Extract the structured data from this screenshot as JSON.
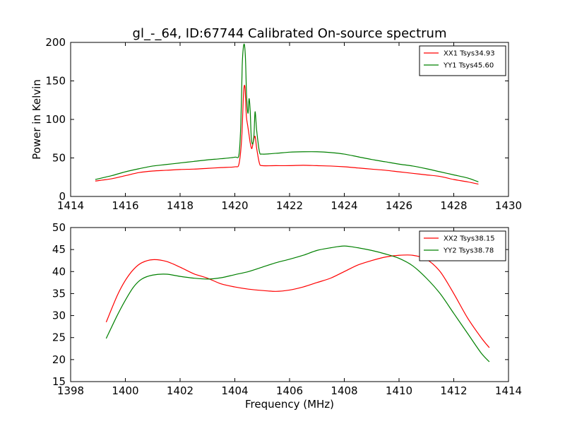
{
  "figure": {
    "title": "gl_-_64, ID:67744 Calibrated On-source spectrum"
  },
  "chart_data": [
    {
      "type": "line",
      "title": "",
      "xlabel": "",
      "ylabel": "Power in Kelvin",
      "xlim": [
        1414,
        1430
      ],
      "ylim": [
        0,
        200
      ],
      "xticks": [
        1414,
        1416,
        1418,
        1420,
        1422,
        1424,
        1426,
        1428,
        1430
      ],
      "yticks": [
        0,
        50,
        100,
        150,
        200
      ],
      "grid": false,
      "legend_position": "upper right",
      "series": [
        {
          "name": "XX1 Tsys34.93",
          "color": "#ff0000",
          "x": [
            1414.9,
            1415.5,
            1416.0,
            1416.5,
            1417.0,
            1417.5,
            1418.0,
            1418.5,
            1419.0,
            1419.5,
            1420.0,
            1420.15,
            1420.25,
            1420.32,
            1420.37,
            1420.42,
            1420.47,
            1420.52,
            1420.56,
            1420.62,
            1420.68,
            1420.74,
            1420.8,
            1420.9,
            1421.0,
            1421.5,
            1422.0,
            1422.5,
            1423.0,
            1423.5,
            1424.0,
            1424.5,
            1425.0,
            1425.5,
            1426.0,
            1426.5,
            1427.0,
            1427.5,
            1428.0,
            1428.5,
            1428.9
          ],
          "y": [
            20,
            23,
            27,
            31,
            33,
            34,
            35,
            35.5,
            36.5,
            37.5,
            38.5,
            42,
            75,
            135,
            142,
            105,
            92,
            80,
            70,
            62,
            72,
            78,
            62,
            43,
            40,
            40,
            40,
            40.5,
            40,
            39.5,
            38.5,
            37,
            35.5,
            34,
            32,
            30,
            28,
            26,
            22,
            19,
            16
          ]
        },
        {
          "name": "YY1 Tsys45.60",
          "color": "#008000",
          "x": [
            1414.9,
            1415.5,
            1416.0,
            1416.5,
            1417.0,
            1417.5,
            1418.0,
            1418.5,
            1419.0,
            1419.5,
            1420.0,
            1420.15,
            1420.22,
            1420.27,
            1420.31,
            1420.35,
            1420.39,
            1420.43,
            1420.48,
            1420.52,
            1420.56,
            1420.6,
            1420.65,
            1420.7,
            1420.74,
            1420.8,
            1420.9,
            1421.0,
            1421.5,
            1422.0,
            1422.5,
            1423.0,
            1423.5,
            1424.0,
            1424.5,
            1425.0,
            1425.5,
            1426.0,
            1426.5,
            1427.0,
            1427.5,
            1428.0,
            1428.5,
            1428.9
          ],
          "y": [
            22,
            27,
            32,
            36,
            39.5,
            41.5,
            43.5,
            45.5,
            47.5,
            49,
            51,
            54,
            95,
            170,
            193,
            197,
            178,
            130,
            108,
            127,
            112,
            77,
            68,
            80,
            110,
            85,
            58,
            55,
            56,
            57.5,
            58,
            58,
            57,
            55,
            51.5,
            48,
            45,
            42,
            39.5,
            36,
            32,
            28,
            24,
            19
          ]
        }
      ]
    },
    {
      "type": "line",
      "title": "",
      "xlabel": "Frequency (MHz)",
      "ylabel": "",
      "xlim": [
        1398,
        1414
      ],
      "ylim": [
        15,
        50
      ],
      "xticks": [
        1398,
        1400,
        1402,
        1404,
        1406,
        1408,
        1410,
        1412,
        1414
      ],
      "yticks": [
        15,
        20,
        25,
        30,
        35,
        40,
        45,
        50
      ],
      "grid": false,
      "legend_position": "upper right",
      "series": [
        {
          "name": "XX2 Tsys38.15",
          "color": "#ff0000",
          "x": [
            1399.3,
            1399.7,
            1400.0,
            1400.3,
            1400.6,
            1401.0,
            1401.5,
            1402.0,
            1402.5,
            1403.0,
            1403.5,
            1404.0,
            1404.5,
            1405.0,
            1405.5,
            1406.0,
            1406.5,
            1407.0,
            1407.5,
            1408.0,
            1408.5,
            1409.0,
            1409.5,
            1410.0,
            1410.5,
            1411.0,
            1411.5,
            1412.0,
            1412.5,
            1413.0,
            1413.3
          ],
          "y": [
            28.5,
            34.5,
            38,
            40.5,
            42,
            42.7,
            42.3,
            41,
            39.5,
            38.5,
            37.2,
            36.5,
            36,
            35.7,
            35.5,
            35.8,
            36.5,
            37.5,
            38.5,
            40,
            41.5,
            42.5,
            43.3,
            43.7,
            43.7,
            42.8,
            40,
            35,
            29.5,
            25,
            22.7
          ]
        },
        {
          "name": "YY2 Tsys38.78",
          "color": "#008000",
          "x": [
            1399.3,
            1399.7,
            1400.0,
            1400.3,
            1400.6,
            1401.0,
            1401.5,
            1402.0,
            1402.5,
            1403.0,
            1403.5,
            1404.0,
            1404.5,
            1405.0,
            1405.5,
            1406.0,
            1406.5,
            1407.0,
            1407.5,
            1408.0,
            1408.5,
            1409.0,
            1409.5,
            1410.0,
            1410.5,
            1411.0,
            1411.5,
            1412.0,
            1412.5,
            1413.0,
            1413.3
          ],
          "y": [
            24.8,
            30,
            33.5,
            36.5,
            38.3,
            39.2,
            39.4,
            38.9,
            38.5,
            38.3,
            38.6,
            39.3,
            40,
            41,
            42,
            42.8,
            43.7,
            44.8,
            45.4,
            45.8,
            45.4,
            44.8,
            44,
            43,
            41.3,
            38.5,
            35,
            30.5,
            26,
            21.5,
            19.5
          ]
        }
      ]
    }
  ]
}
